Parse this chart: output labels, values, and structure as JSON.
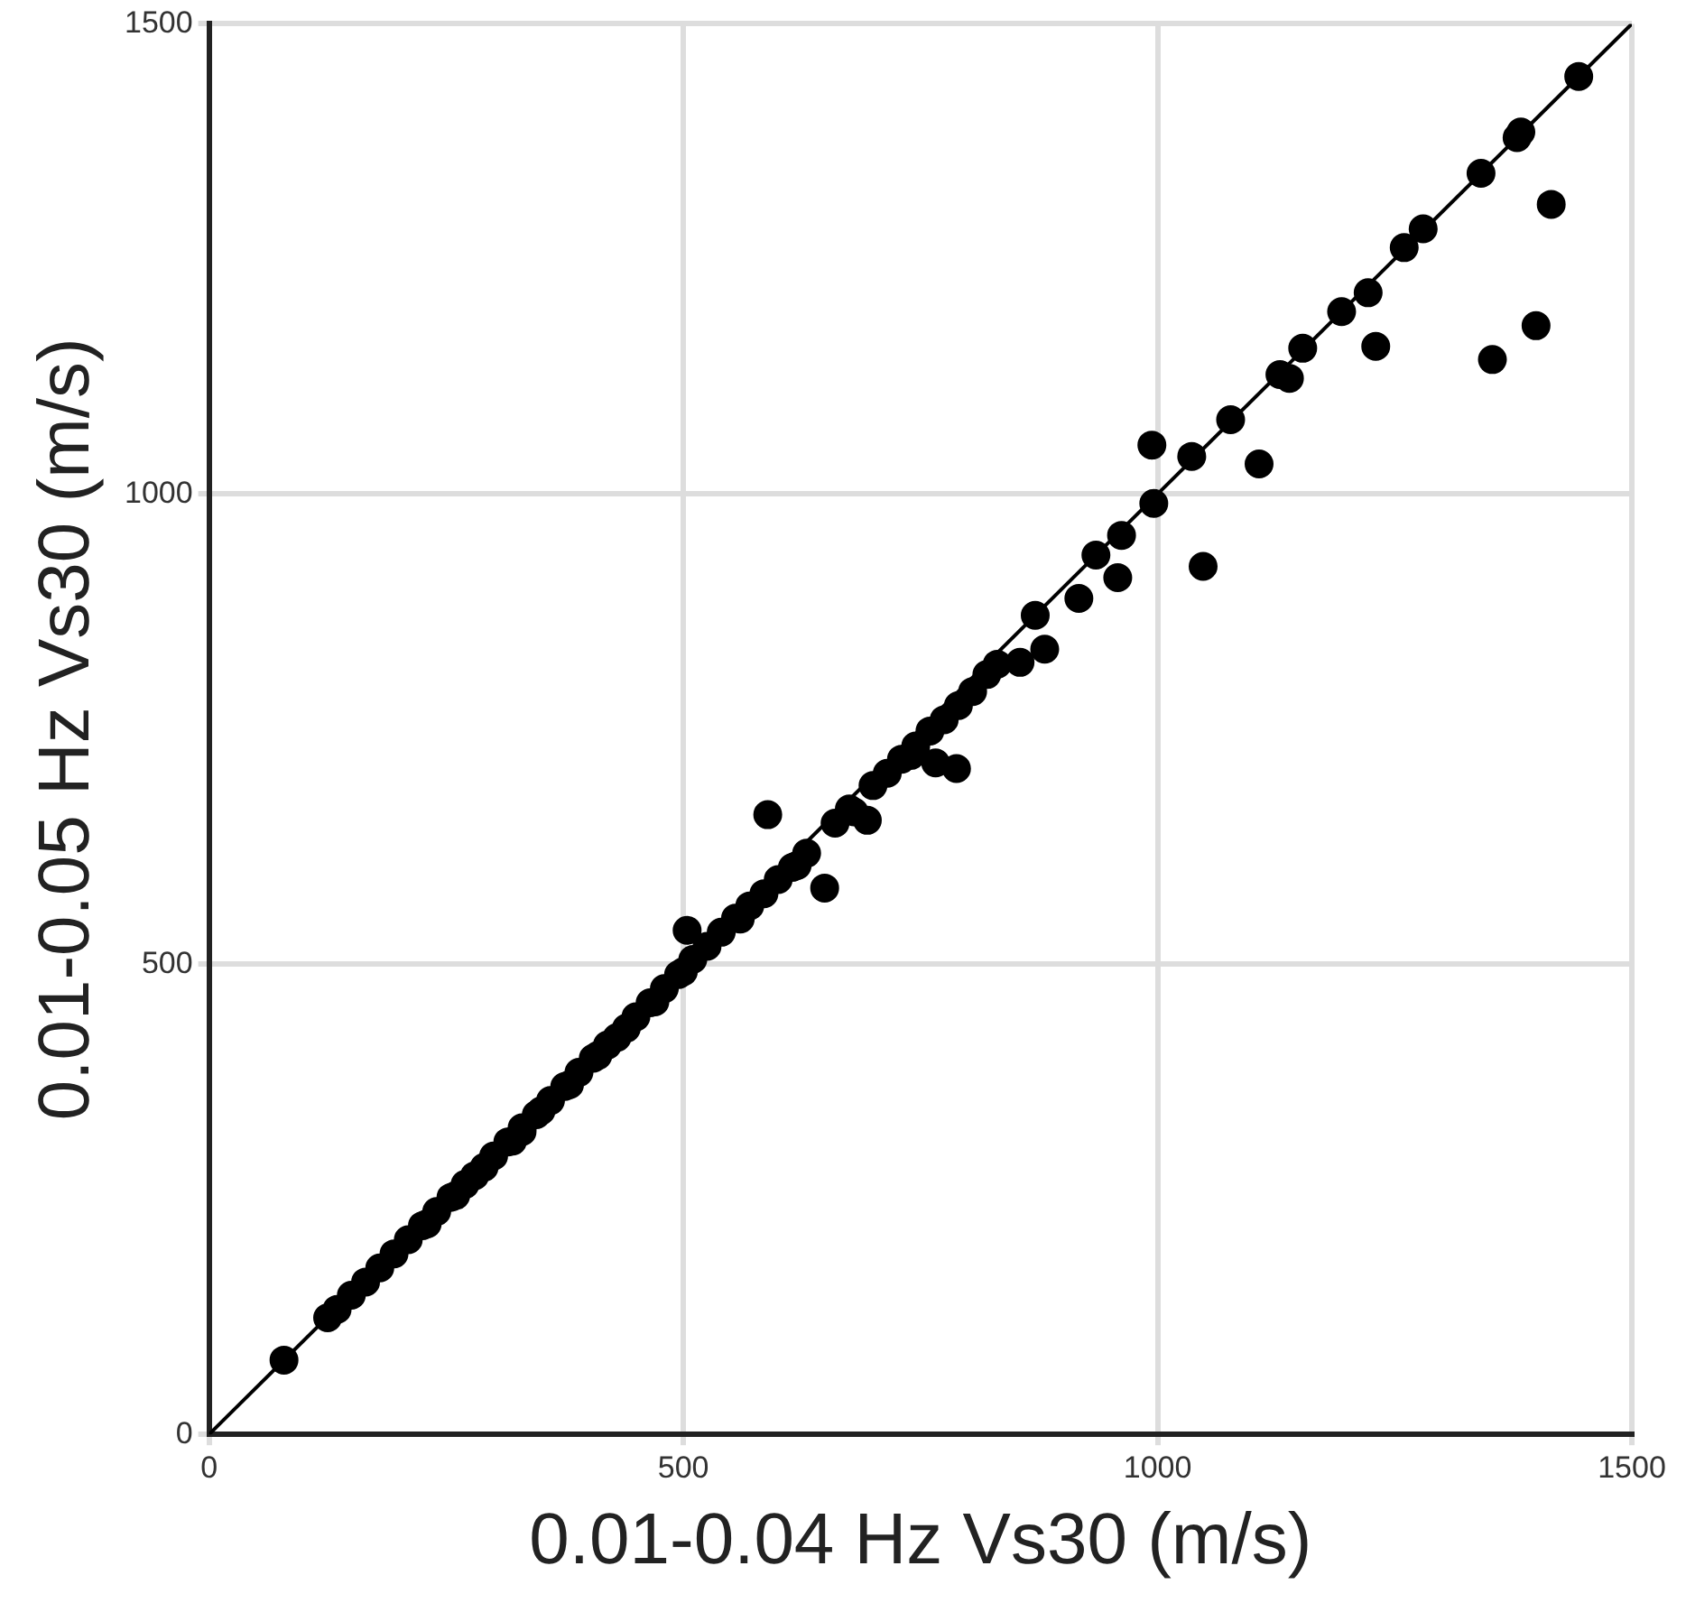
{
  "chart_data": {
    "type": "scatter",
    "xlabel": "0.01-0.04 Hz Vs30 (m/s)",
    "ylabel": "0.01-0.05 Hz Vs30 (m/s)",
    "xlim": [
      0,
      1500
    ],
    "ylim": [
      0,
      1500
    ],
    "xticks": [
      0,
      500,
      1000,
      1500
    ],
    "yticks": [
      0,
      500,
      1000,
      1500
    ],
    "grid": true,
    "legend": false,
    "marker": "circle",
    "series": [
      {
        "type": "line",
        "color": "#000000",
        "marker": "none",
        "line_style": "solid",
        "x": [
          0,
          1500
        ],
        "values": [
          0,
          1500
        ]
      },
      {
        "color": "#000000",
        "x": [
          79,
          125,
          135,
          150,
          165,
          180,
          195,
          210,
          225,
          240,
          255,
          270,
          300,
          315,
          330,
          345,
          360,
          375,
          390,
          405,
          420,
          450,
          465,
          480,
          495,
          504,
          510,
          525,
          540,
          555,
          570,
          589,
          585,
          600,
          615,
          630,
          649,
          660,
          675,
          694,
          700,
          715,
          730,
          745,
          760,
          766,
          775,
          788,
          790,
          805,
          820,
          831,
          855,
          871,
          881,
          917,
          935,
          958,
          962,
          994,
          996,
          1036,
          1048,
          1077,
          1107,
          1129,
          1139,
          1153,
          1194,
          1222,
          1230,
          1260,
          1280,
          1341,
          1353,
          1379,
          1383,
          1399,
          1415,
          1444,
          230,
          260,
          290,
          320,
          350,
          380,
          410,
          440,
          470,
          500,
          280,
          330,
          430,
          560,
          620,
          680,
          740
        ],
        "values": [
          79,
          124,
          133,
          148,
          162,
          177,
          192,
          207,
          222,
          237,
          252,
          266,
          296,
          311,
          326,
          340,
          355,
          370,
          385,
          400,
          414,
          444,
          459,
          474,
          489,
          536,
          505,
          519,
          534,
          549,
          562,
          659,
          575,
          590,
          603,
          618,
          581,
          650,
          665,
          653,
          690,
          703,
          718,
          732,
          748,
          714,
          760,
          708,
          775,
          790,
          808,
          819,
          821,
          871,
          835,
          889,
          935,
          911,
          956,
          1052,
          990,
          1040,
          923,
          1079,
          1032,
          1127,
          1123,
          1155,
          1194,
          1214,
          1157,
          1262,
          1282,
          1341,
          1143,
          1379,
          1385,
          1179,
          1308,
          1444,
          224,
          254,
          284,
          312,
          344,
          372,
          403,
          432,
          460,
          492,
          275,
          322,
          422,
          548,
          605,
          662,
          722
        ]
      }
    ]
  }
}
